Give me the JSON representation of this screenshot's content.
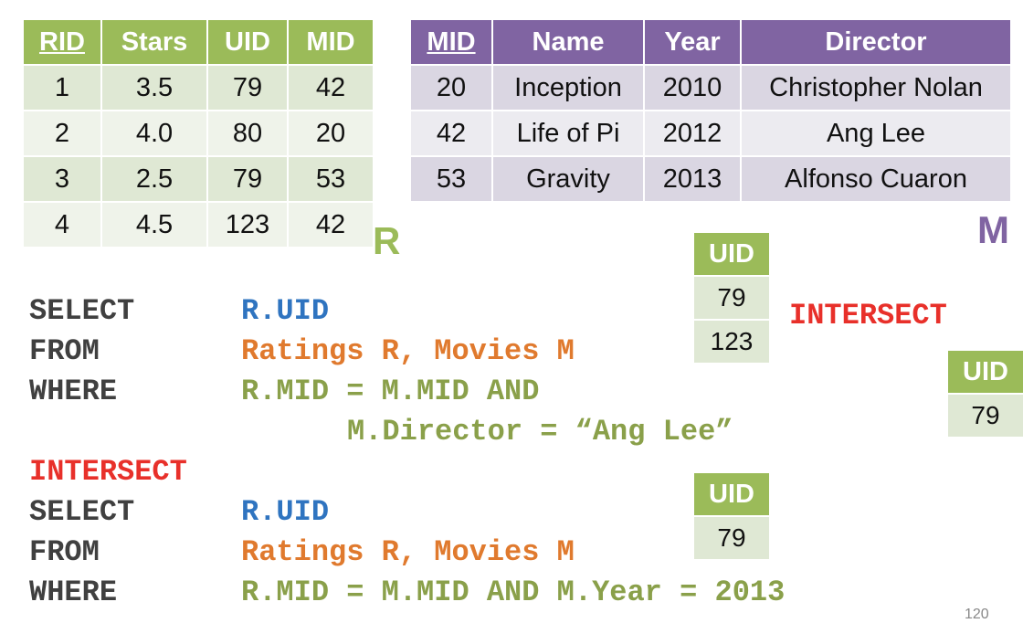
{
  "ratings": {
    "headers": [
      "RID",
      "Stars",
      "UID",
      "MID"
    ],
    "rows": [
      [
        "1",
        "3.5",
        "79",
        "42"
      ],
      [
        "2",
        "4.0",
        "80",
        "20"
      ],
      [
        "3",
        "2.5",
        "79",
        "53"
      ],
      [
        "4",
        "4.5",
        "123",
        "42"
      ]
    ],
    "label": "R"
  },
  "movies": {
    "headers": [
      "MID",
      "Name",
      "Year",
      "Director"
    ],
    "rows": [
      [
        "20",
        "Inception",
        "2010",
        "Christopher Nolan"
      ],
      [
        "42",
        "Life of Pi",
        "2012",
        "Ang Lee"
      ],
      [
        "53",
        "Gravity",
        "2013",
        "Alfonso Cuaron"
      ]
    ],
    "label": "M"
  },
  "result1": {
    "header": "UID",
    "values": [
      "79",
      "123"
    ]
  },
  "result2": {
    "header": "UID",
    "values": [
      "79"
    ]
  },
  "result3": {
    "header": "UID",
    "values": [
      "79"
    ]
  },
  "intersect_label": "INTERSECT",
  "query1": {
    "select_kw": "SELECT",
    "select_expr": "R.UID",
    "from_kw": "FROM",
    "from_expr": "Ratings R, Movies M",
    "where_kw": "WHERE",
    "where_expr": "R.MID = M.MID AND",
    "where_expr2": "M.Director = “Ang Lee”"
  },
  "intersect_kw": "INTERSECT",
  "query2": {
    "select_kw": "SELECT",
    "select_expr": "R.UID",
    "from_kw": "FROM",
    "from_expr": "Ratings R, Movies M",
    "where_kw": "WHERE",
    "where_expr": "R.MID = M.MID AND M.Year = 2013"
  },
  "page_number": "120",
  "colors": {
    "green": "#9bbb59",
    "purple": "#8064a2",
    "red": "#e8302a",
    "blue": "#2f74c0",
    "orange": "#e07a2e"
  }
}
